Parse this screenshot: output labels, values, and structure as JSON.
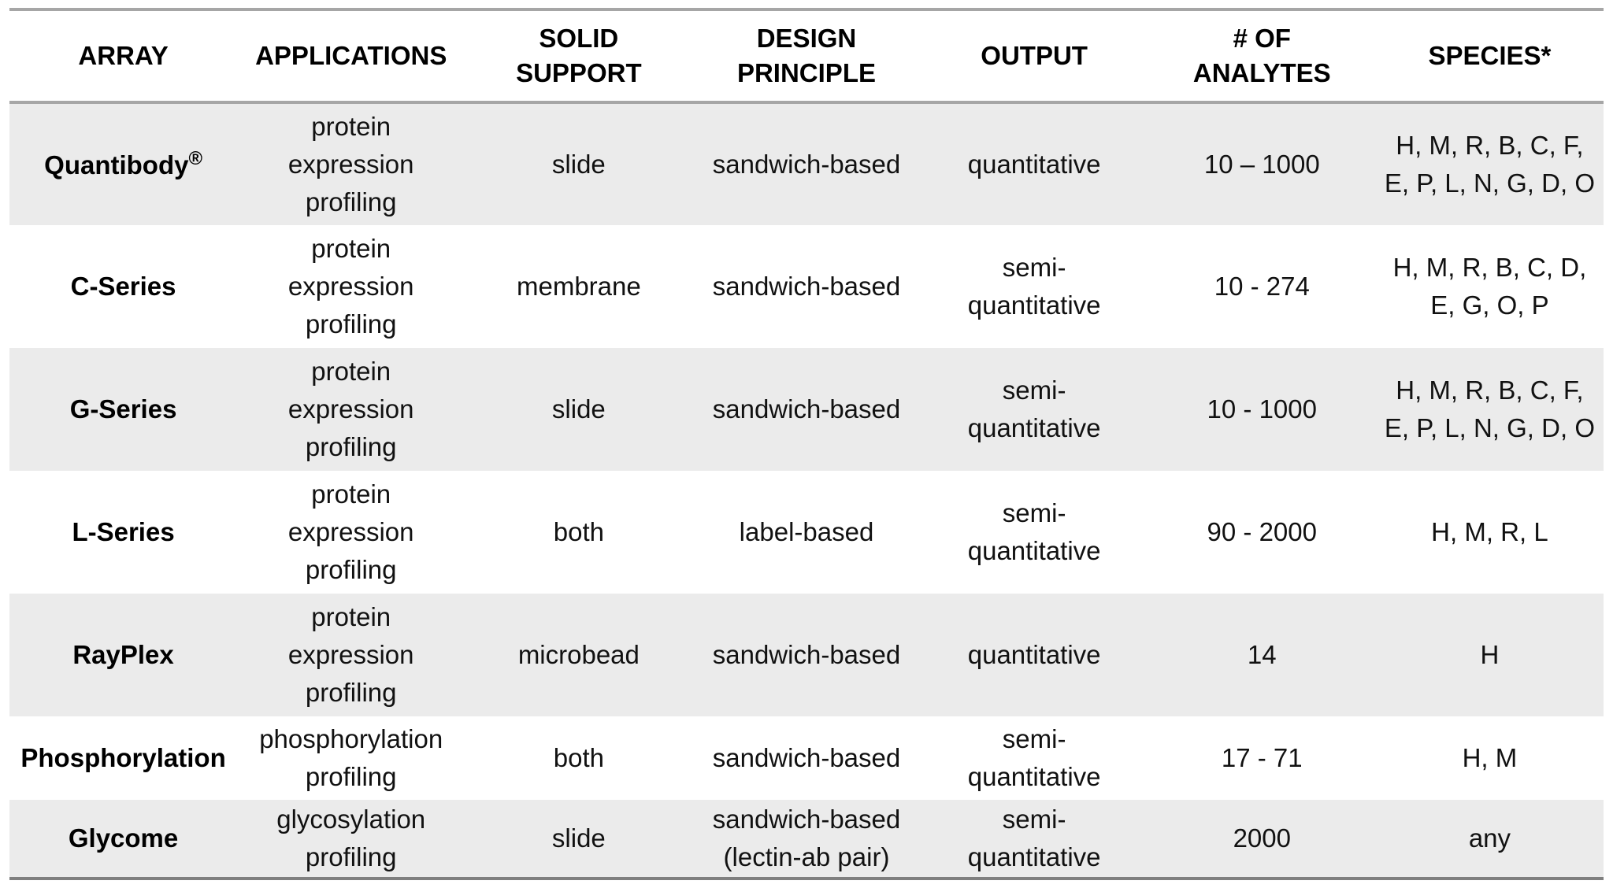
{
  "table": {
    "columns": [
      {
        "key": "array",
        "label": "ARRAY"
      },
      {
        "key": "applications",
        "label": "APPLICATIONS"
      },
      {
        "key": "solid_support",
        "label": "SOLID\nSUPPORT"
      },
      {
        "key": "design_principle",
        "label": "DESIGN\nPRINCIPLE"
      },
      {
        "key": "output",
        "label": "OUTPUT"
      },
      {
        "key": "num_analytes",
        "label": "# OF\nANALYTES"
      },
      {
        "key": "species",
        "label": "SPECIES*"
      }
    ],
    "rows": [
      {
        "array": "Quantibody",
        "array_suffix": "®",
        "applications": "protein\nexpression\nprofiling",
        "solid_support": "slide",
        "design_principle": "sandwich-based",
        "output": "quantitative",
        "num_analytes": "10 – 1000",
        "species": "H, M, R, B, C, F,\nE, P, L, N, G, D, O"
      },
      {
        "array": "C-Series",
        "applications": "protein\nexpression\nprofiling",
        "solid_support": "membrane",
        "design_principle": "sandwich-based",
        "output": "semi-\nquantitative",
        "num_analytes": "10 - 274",
        "species": "H, M, R, B, C, D,\nE, G, O, P"
      },
      {
        "array": "G-Series",
        "applications": "protein\nexpression\nprofiling",
        "solid_support": "slide",
        "design_principle": "sandwich-based",
        "output": "semi-\nquantitative",
        "num_analytes": "10 - 1000",
        "species": "H, M, R, B, C, F,\nE, P, L, N, G, D, O"
      },
      {
        "array": "L-Series",
        "applications": "protein\nexpression\nprofiling",
        "solid_support": "both",
        "design_principle": "label-based",
        "output": "semi-\nquantitative",
        "num_analytes": "90 - 2000",
        "species": "H, M, R, L"
      },
      {
        "array": "RayPlex",
        "applications": "protein\nexpression\nprofiling",
        "solid_support": "microbead",
        "design_principle": "sandwich-based",
        "output": "quantitative",
        "num_analytes": "14",
        "species": "H"
      },
      {
        "array": "Phosphorylation",
        "applications": "phosphorylation\nprofiling",
        "solid_support": "both",
        "design_principle": "sandwich-based",
        "output": "semi-\nquantitative",
        "num_analytes": "17 - 71",
        "species": "H, M"
      },
      {
        "array": "Glycome",
        "applications": "glycosylation\nprofiling",
        "solid_support": "slide",
        "design_principle": "sandwich-based\n(lectin-ab pair)",
        "output": "semi-\nquantitative",
        "num_analytes": "2000",
        "species": "any"
      }
    ],
    "colors": {
      "row_stripe": "#ebebeb",
      "rule_gray": "#a6a6a6",
      "rule_dark": "#7f7f7f",
      "header_text": "#000000",
      "body_text": "#111111"
    }
  }
}
